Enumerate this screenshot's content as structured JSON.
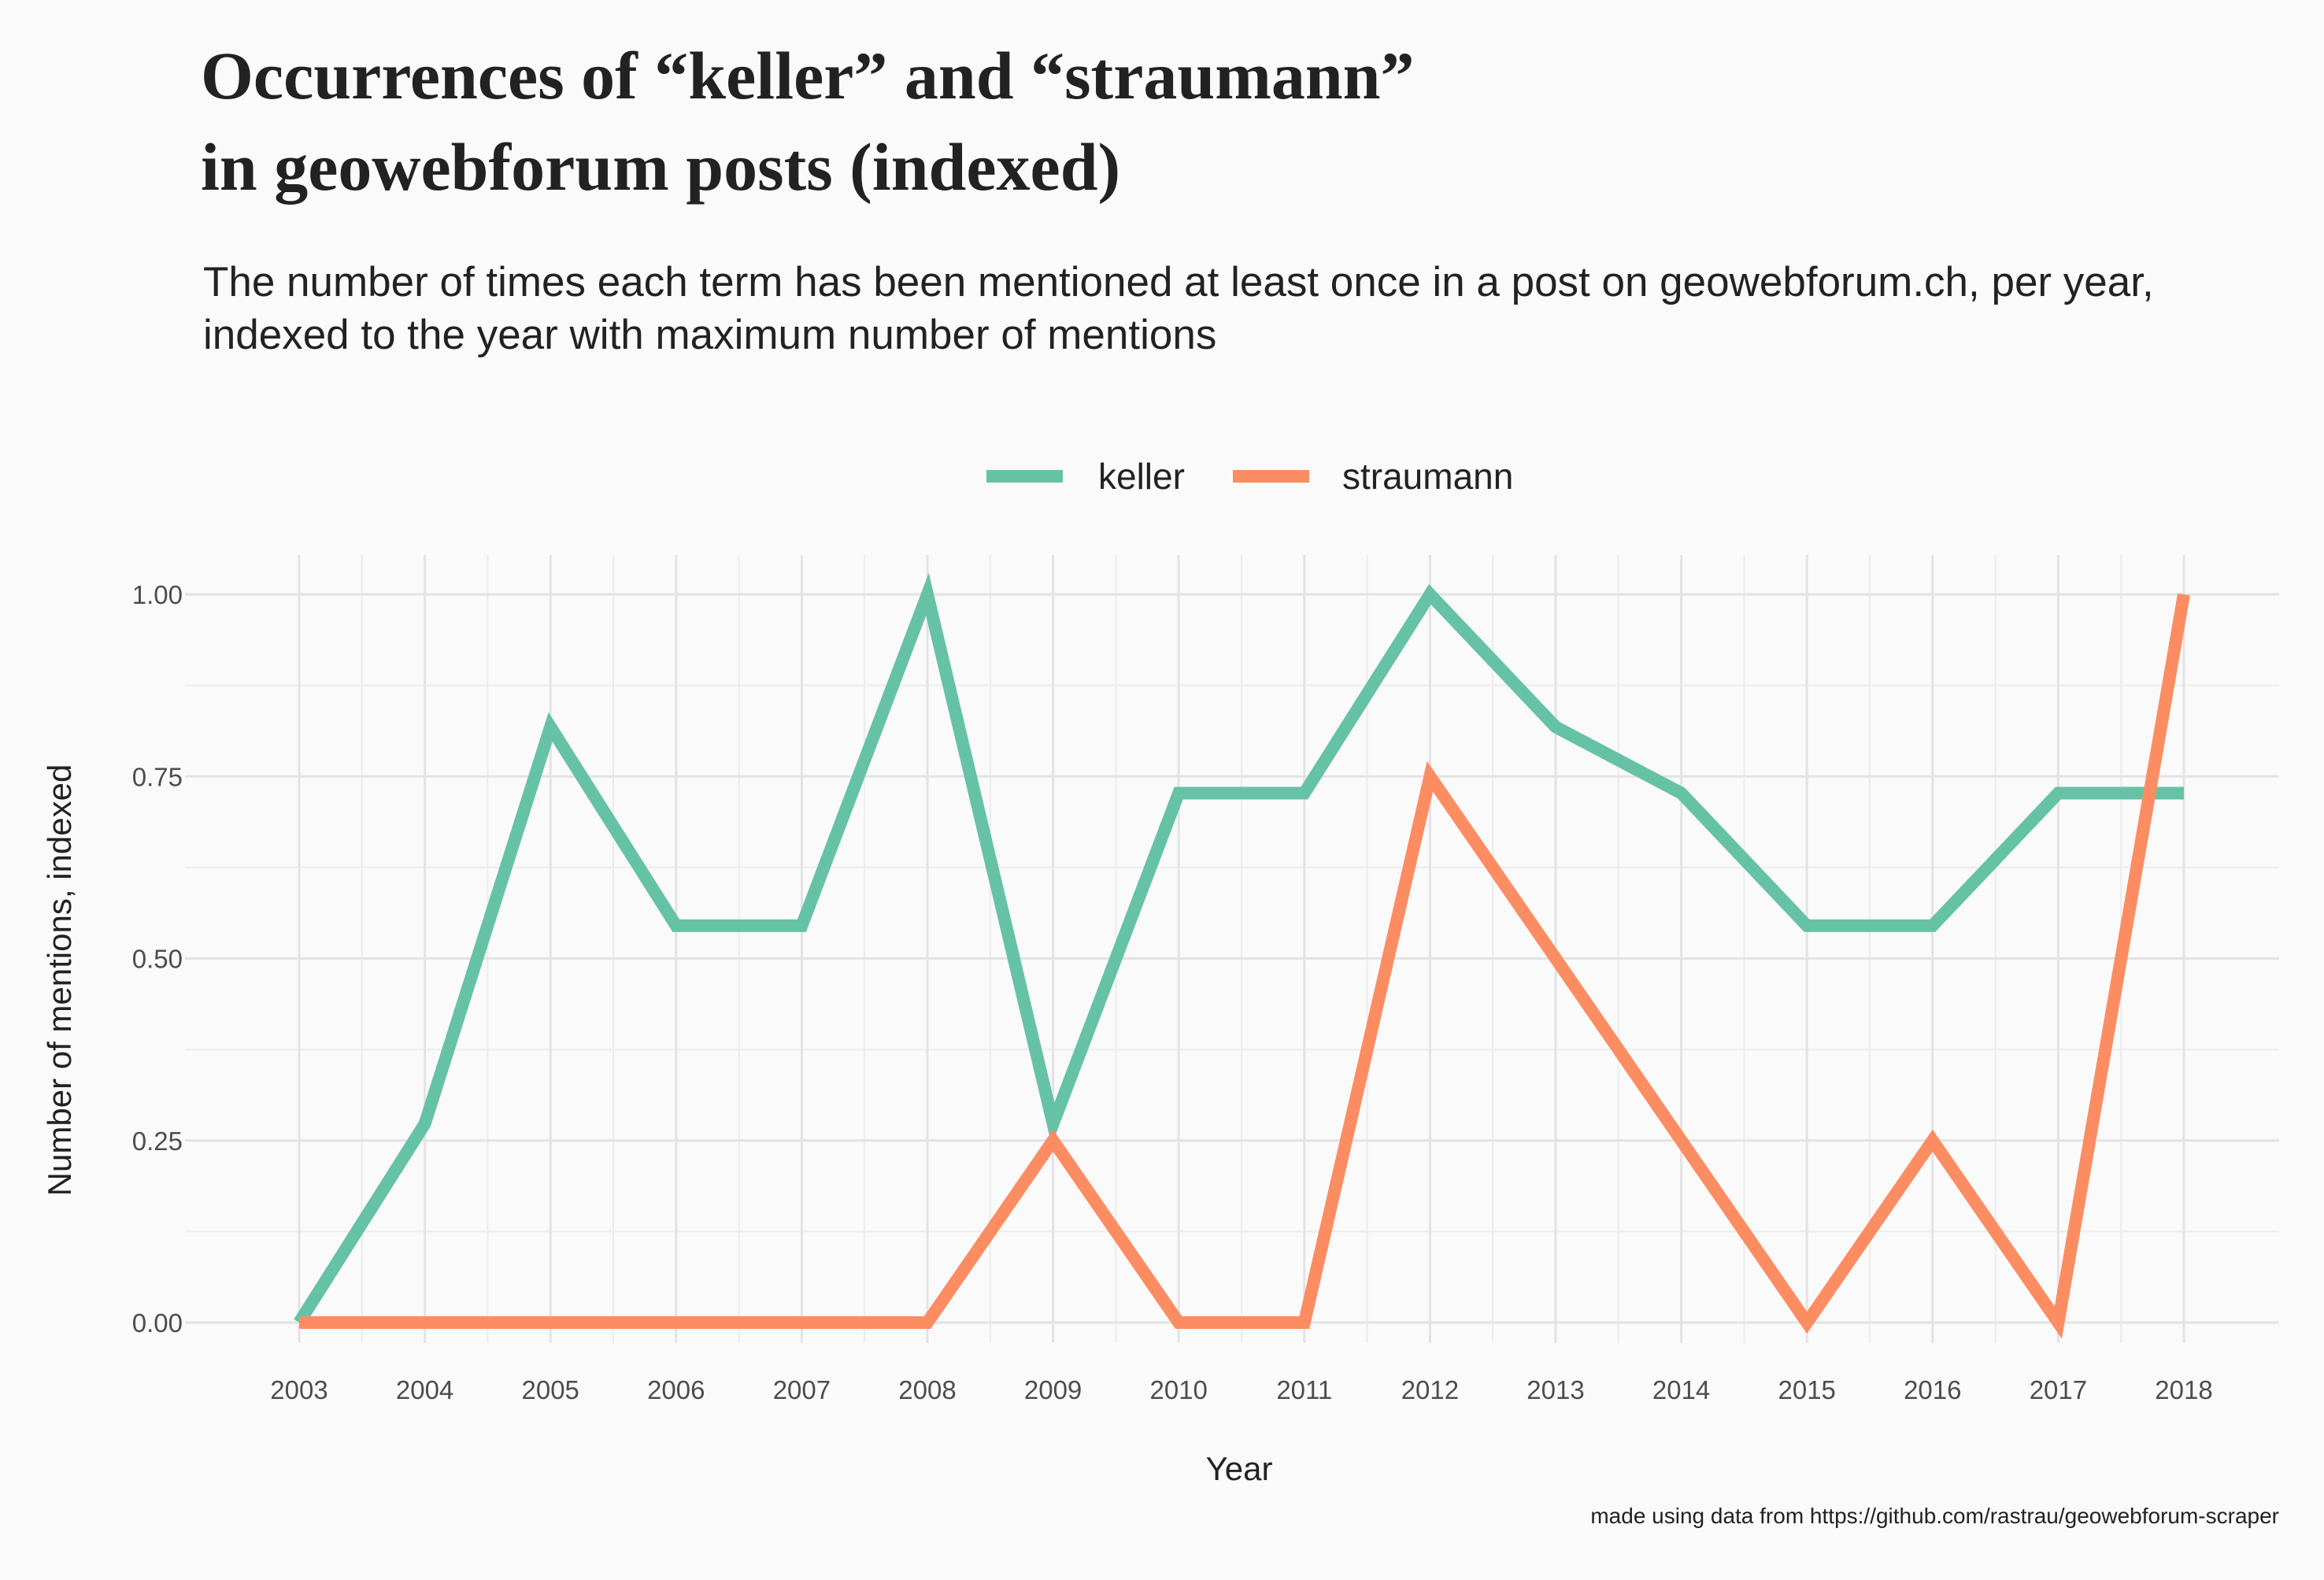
{
  "chart_data": {
    "type": "line",
    "title_lines": [
      "Occurrences of “keller” and “straumann”",
      "in geowebforum posts (indexed)"
    ],
    "subtitle_lines": [
      "The number of times each term has been mentioned at least once in a post on geowebforum.ch, per year,",
      "indexed to the year with maximum number of mentions"
    ],
    "xlabel": "Year",
    "ylabel": "Number of mentions, indexed",
    "caption": "made using data from https://github.com/rastrau/geowebforum-scraper",
    "x": [
      2003,
      2004,
      2005,
      2006,
      2007,
      2008,
      2009,
      2010,
      2011,
      2012,
      2013,
      2014,
      2015,
      2016,
      2017,
      2018
    ],
    "x_tick_labels": [
      "2003",
      "2004",
      "2005",
      "2006",
      "2007",
      "2008",
      "2009",
      "2010",
      "2011",
      "2012",
      "2013",
      "2014",
      "2015",
      "2016",
      "2017",
      "2018"
    ],
    "y_ticks": [
      0,
      0.25,
      0.5,
      0.75,
      1.0
    ],
    "y_tick_labels": [
      "0.00",
      "0.25",
      "0.50",
      "0.75",
      "1.00"
    ],
    "ylim": [
      0,
      1
    ],
    "grid": true,
    "legend_position": "top-center",
    "series": [
      {
        "name": "keller",
        "color": "#66c2a5",
        "values": [
          0,
          0.273,
          0.818,
          0.545,
          0.545,
          1.0,
          0.273,
          0.727,
          0.727,
          1.0,
          0.818,
          0.727,
          0.545,
          0.545,
          0.727,
          0.727
        ]
      },
      {
        "name": "straumann",
        "color": "#fc8d62",
        "values": [
          0,
          0,
          0,
          0,
          0,
          0,
          0.25,
          0,
          0,
          0.75,
          0.5,
          0.25,
          0,
          0.25,
          0,
          1.0
        ]
      }
    ]
  }
}
